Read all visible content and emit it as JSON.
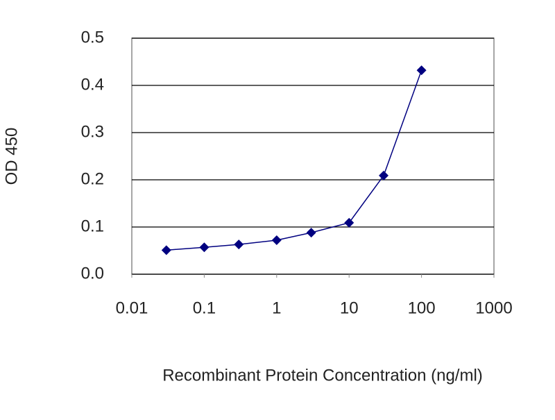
{
  "chart_data": {
    "type": "line",
    "x_label": "Recombinant Protein Concentration (ng/ml)",
    "y_label": "OD 450",
    "xscale": "log",
    "x": [
      0.03,
      0.1,
      0.3,
      1,
      3,
      10,
      30,
      100
    ],
    "series": [
      {
        "color": "#000080",
        "values": [
          0.051,
          0.057,
          0.063,
          0.072,
          0.088,
          0.109,
          0.209,
          0.432
        ]
      }
    ],
    "xlim": [
      0.01,
      1000
    ],
    "xticks": [
      0.01,
      0.1,
      1,
      10,
      100,
      1000
    ],
    "ylim": [
      0,
      0.5
    ],
    "yticks": [
      {
        "value": 0,
        "label": "0.0"
      },
      0.1,
      0.2,
      0.3,
      0.4,
      0.5
    ],
    "grid": true
  }
}
